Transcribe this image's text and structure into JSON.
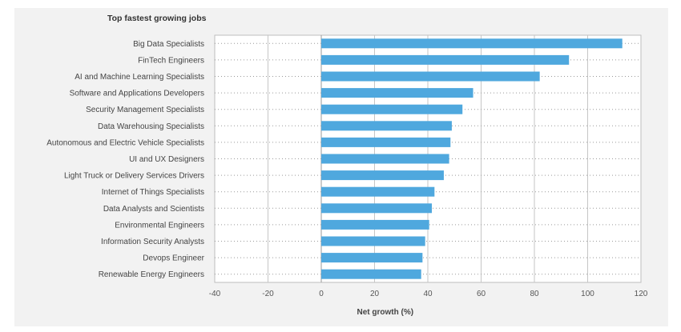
{
  "chart_data": {
    "type": "bar",
    "orientation": "horizontal",
    "title": "Top fastest growing jobs",
    "xlabel": "Net growth (%)",
    "ylabel": "",
    "xlim": [
      -40,
      120
    ],
    "xticks": [
      "-40",
      "-20",
      "0",
      "20",
      "40",
      "60",
      "80",
      "100",
      "120"
    ],
    "grid": true,
    "bar_color": "#4fa8de",
    "categories": [
      "Big Data Specialists",
      "FinTech Engineers",
      "AI and Machine Learning Specialists",
      "Software and Applications Developers",
      "Security Management Specialists",
      "Data Warehousing Specialists",
      "Autonomous and Electric Vehicle Specialists",
      "UI and UX Designers",
      "Light Truck or Delivery Services Drivers",
      "Internet of Things Specialists",
      "Data Analysts and Scientists",
      "Environmental Engineers",
      "Information Security Analysts",
      "Devops Engineer",
      "Renewable Energy Engineers"
    ],
    "values": [
      113,
      93,
      82,
      57,
      53,
      49,
      48.5,
      48,
      46,
      42.5,
      41.5,
      40.5,
      39,
      38,
      37.5
    ]
  }
}
